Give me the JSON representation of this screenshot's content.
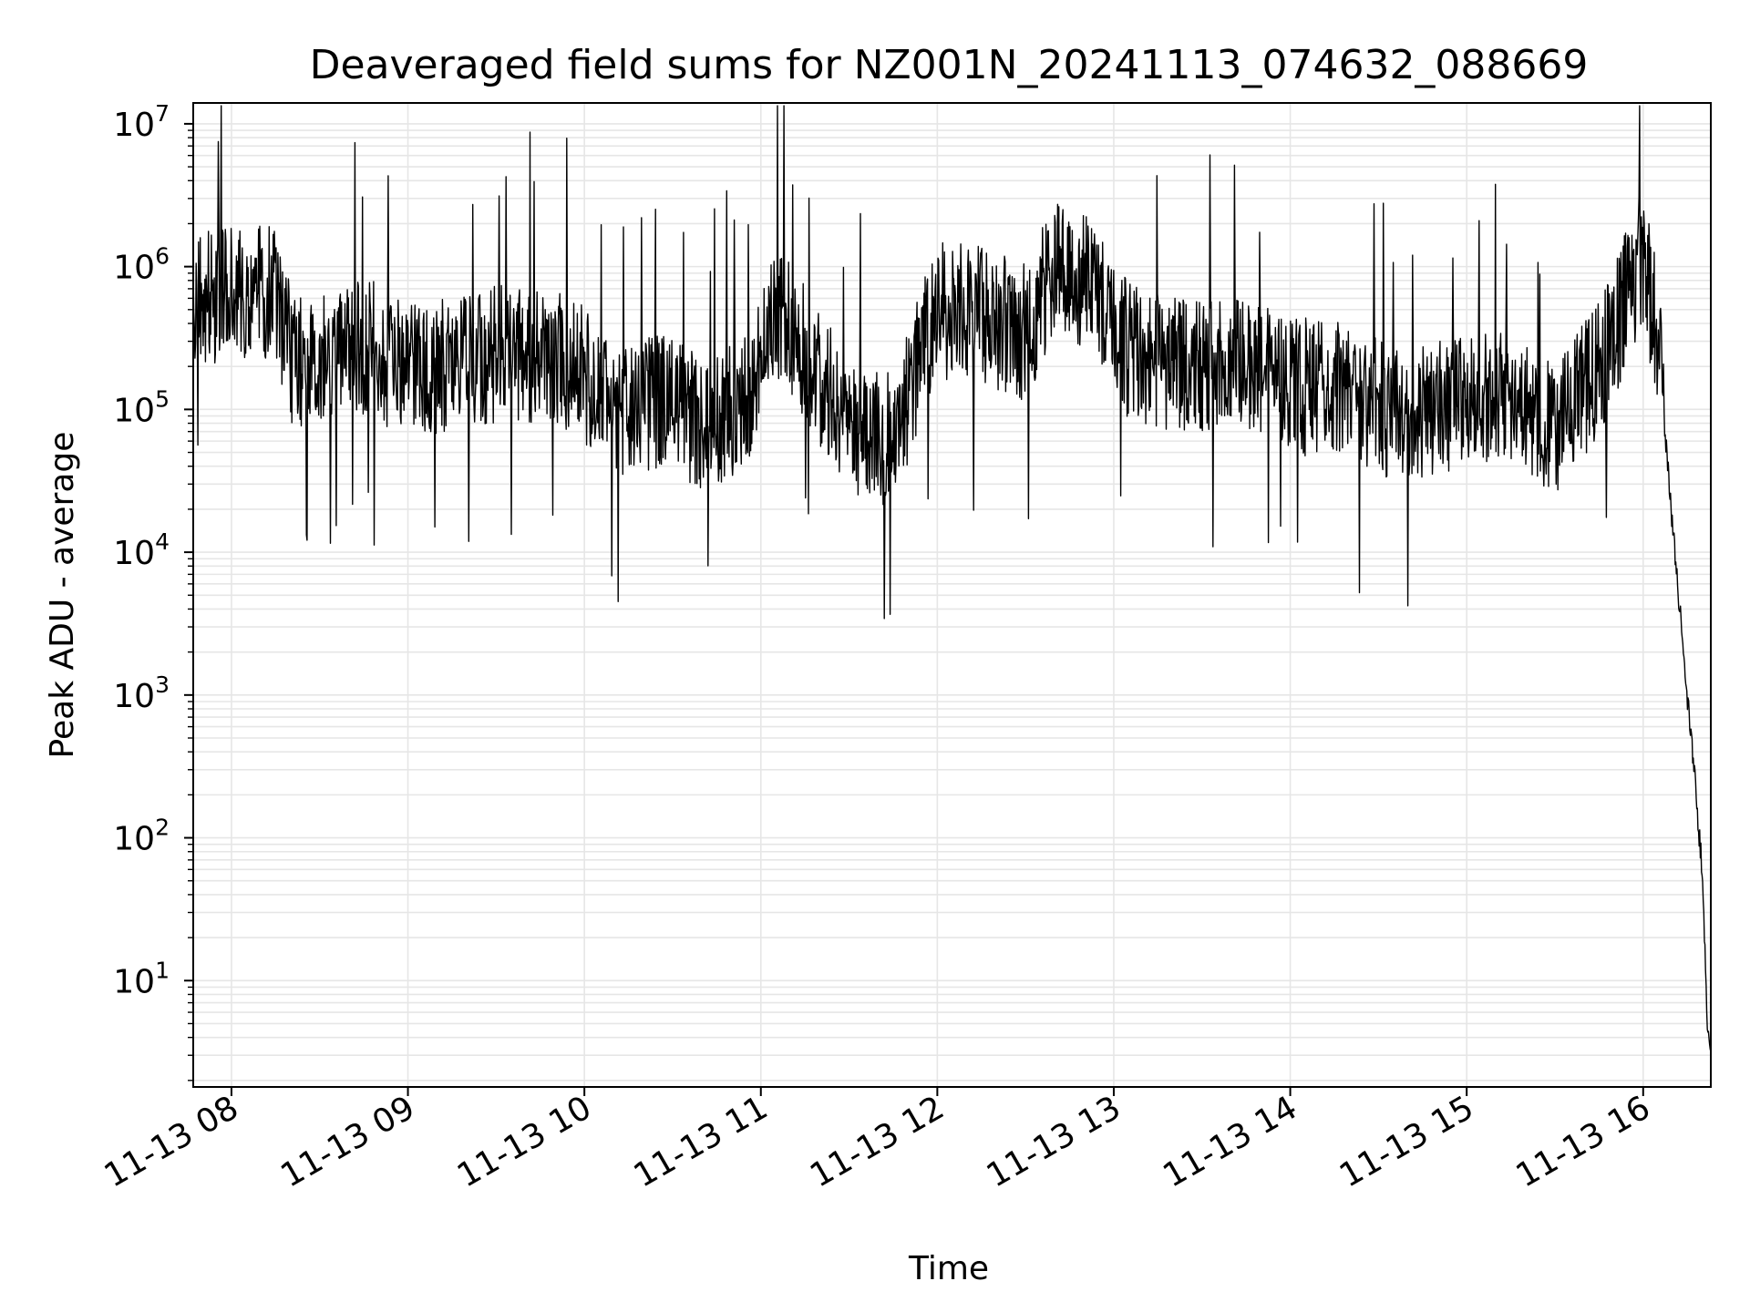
{
  "chart_data": {
    "type": "line",
    "title": "Deaveraged field sums for NZ001N_20241113_074632_088669",
    "xlabel": "Time",
    "ylabel": "Peak ADU - average",
    "yscale": "log",
    "ylim": [
      1.8,
      14000000
    ],
    "xlim": [
      "2024-11-13 07:47",
      "2024-11-13 16:23"
    ],
    "grid": true,
    "x_ticks": [
      {
        "value": "2024-11-13 08:00",
        "label": "11-13 08"
      },
      {
        "value": "2024-11-13 09:00",
        "label": "11-13 09"
      },
      {
        "value": "2024-11-13 10:00",
        "label": "11-13 10"
      },
      {
        "value": "2024-11-13 11:00",
        "label": "11-13 11"
      },
      {
        "value": "2024-11-13 12:00",
        "label": "11-13 12"
      },
      {
        "value": "2024-11-13 13:00",
        "label": "11-13 13"
      },
      {
        "value": "2024-11-13 14:00",
        "label": "11-13 14"
      },
      {
        "value": "2024-11-13 15:00",
        "label": "11-13 15"
      },
      {
        "value": "2024-11-13 16:00",
        "label": "11-13 16"
      }
    ],
    "y_ticks": [
      {
        "value": 10,
        "base": "10",
        "exp": "1"
      },
      {
        "value": 100,
        "base": "10",
        "exp": "2"
      },
      {
        "value": 1000,
        "base": "10",
        "exp": "3"
      },
      {
        "value": 10000,
        "base": "10",
        "exp": "4"
      },
      {
        "value": 100000,
        "base": "10",
        "exp": "5"
      },
      {
        "value": 1000000,
        "base": "10",
        "exp": "6"
      },
      {
        "value": 10000000,
        "base": "10",
        "exp": "7"
      }
    ],
    "line_color": "#000000",
    "grid_color": "#e6e6e6",
    "series": [
      {
        "x": [
          "2024-11-13 07:47",
          "2024-11-13 07:55",
          "2024-11-13 08:05",
          "2024-11-13 08:15",
          "2024-11-13 08:20",
          "2024-11-13 08:30",
          "2024-11-13 08:40",
          "2024-11-13 08:50",
          "2024-11-13 09:00",
          "2024-11-13 09:15",
          "2024-11-13 09:30",
          "2024-11-13 09:45",
          "2024-11-13 10:00",
          "2024-11-13 10:10",
          "2024-11-13 10:25",
          "2024-11-13 10:40",
          "2024-11-13 10:55",
          "2024-11-13 11:05",
          "2024-11-13 11:15",
          "2024-11-13 11:30",
          "2024-11-13 11:45",
          "2024-11-13 12:00",
          "2024-11-13 12:15",
          "2024-11-13 12:30",
          "2024-11-13 12:40",
          "2024-11-13 12:50",
          "2024-11-13 13:05",
          "2024-11-13 13:20",
          "2024-11-13 13:40",
          "2024-11-13 14:00",
          "2024-11-13 14:20",
          "2024-11-13 14:40",
          "2024-11-13 15:00",
          "2024-11-13 15:15",
          "2024-11-13 15:30",
          "2024-11-13 15:45",
          "2024-11-13 16:00",
          "2024-11-13 16:05",
          "2024-11-13 16:10",
          "2024-11-13 16:15",
          "2024-11-13 16:18",
          "2024-11-13 16:20",
          "2024-11-13 16:22",
          "2024-11-13 16:23"
        ],
        "y": [
          550000,
          650000,
          600000,
          700000,
          250000,
          200000,
          300000,
          250000,
          180000,
          200000,
          250000,
          250000,
          180000,
          100000,
          120000,
          80000,
          110000,
          500000,
          250000,
          80000,
          60000,
          500000,
          450000,
          350000,
          1000000,
          800000,
          250000,
          200000,
          200000,
          150000,
          130000,
          90000,
          120000,
          120000,
          65000,
          200000,
          1200000,
          300000,
          15000,
          1000,
          200,
          60,
          4,
          4
        ]
      }
    ]
  }
}
